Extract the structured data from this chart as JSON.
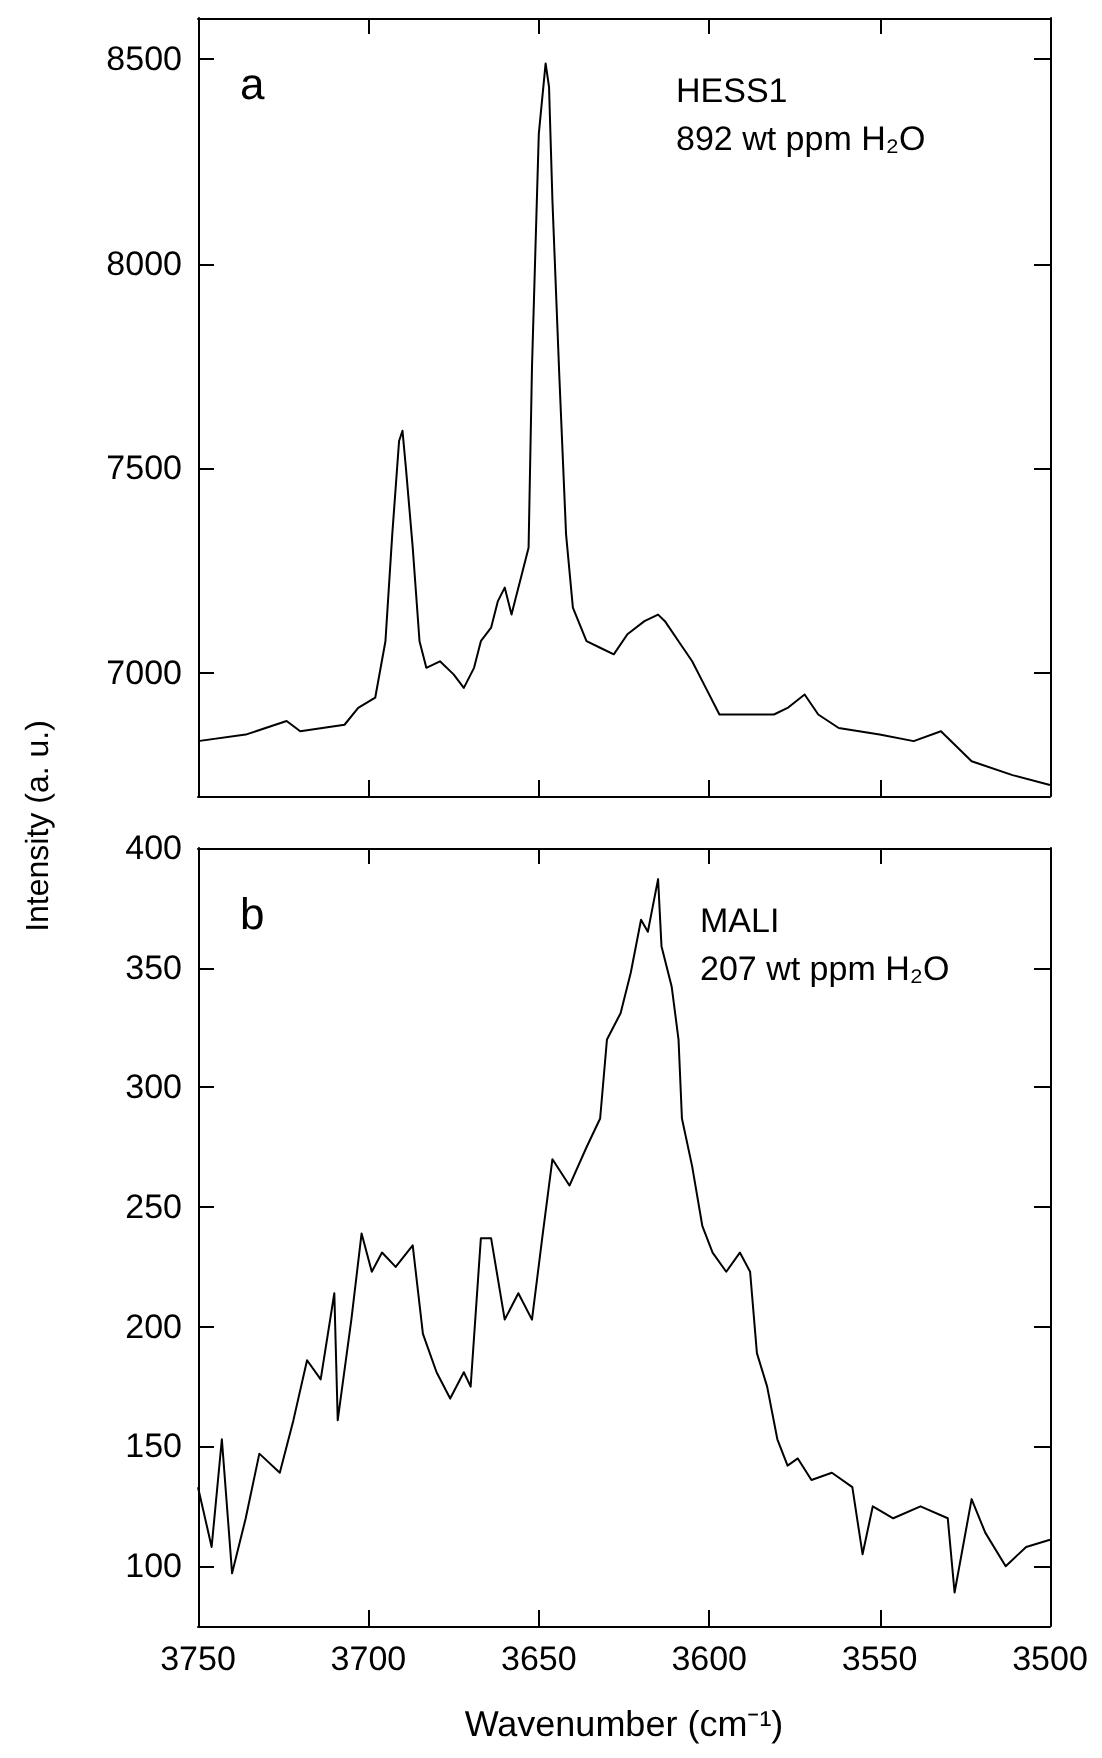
{
  "chart_data": [
    {
      "type": "line",
      "ylabel": "Intensity (a. u.)",
      "annotations": [
        "a",
        "HESS1",
        "892 wt ppm H₂O"
      ],
      "xlim": [
        3750,
        3500
      ],
      "xticks": [
        3750,
        3700,
        3650,
        3600,
        3550,
        3500
      ],
      "ylim": [
        6700,
        8600
      ],
      "yticks": [
        7000,
        7500,
        8000,
        8500
      ],
      "tick_labels": "y",
      "marker": "none",
      "line_style": "solid",
      "series": [
        {
          "color": "#000000",
          "x": [
            3750,
            3736,
            3724,
            3720,
            3707,
            3703,
            3698,
            3695,
            3693,
            3691,
            3690,
            3689,
            3687,
            3685,
            3683,
            3679,
            3675,
            3672,
            3669,
            3667,
            3664,
            3662,
            3660,
            3658,
            3657,
            3655,
            3653,
            3652,
            3650,
            3648,
            3647,
            3646,
            3644,
            3642,
            3640,
            3636,
            3632,
            3628,
            3624,
            3619,
            3615,
            3613,
            3609,
            3605,
            3601,
            3597,
            3589,
            3581,
            3577,
            3572,
            3568,
            3562,
            3550,
            3540,
            3532,
            3523,
            3511,
            3500
          ],
          "values": [
            6834,
            6850,
            6883,
            6858,
            6874,
            6915,
            6940,
            7078,
            7339,
            7567,
            7592,
            7502,
            7307,
            7078,
            7013,
            7029,
            6997,
            6964,
            7013,
            7078,
            7111,
            7176,
            7209,
            7143,
            7176,
            7241,
            7306,
            7747,
            8317,
            8489,
            8432,
            8154,
            7730,
            7339,
            7160,
            7078,
            7062,
            7046,
            7095,
            7127,
            7143,
            7127,
            7078,
            7029,
            6964,
            6899,
            6899,
            6899,
            6915,
            6948,
            6899,
            6866,
            6850,
            6834,
            6858,
            6785,
            6751,
            6727
          ]
        }
      ]
    },
    {
      "type": "line",
      "xlabel": "Wavenumber (cm⁻¹)",
      "annotations": [
        "b",
        "MALI",
        "207 wt ppm H₂O"
      ],
      "xlim": [
        3750,
        3500
      ],
      "xticks": [
        3750,
        3700,
        3650,
        3600,
        3550,
        3500
      ],
      "ylim": [
        75,
        400
      ],
      "yticks": [
        100,
        150,
        200,
        250,
        300,
        350,
        400
      ],
      "marker": "none",
      "line_style": "solid",
      "series": [
        {
          "color": "#000000",
          "x": [
            3750,
            3746,
            3743,
            3740,
            3736,
            3732,
            3726,
            3722,
            3718,
            3714,
            3710,
            3709,
            3705,
            3702,
            3699,
            3696,
            3692,
            3687,
            3684,
            3680,
            3676,
            3672,
            3670,
            3667,
            3664,
            3660,
            3656,
            3652,
            3649,
            3646,
            3641,
            3636,
            3632,
            3630,
            3626,
            3623,
            3620,
            3618,
            3615,
            3614,
            3611,
            3609,
            3608,
            3605,
            3602,
            3599,
            3595,
            3591,
            3588,
            3586,
            3583,
            3580,
            3577,
            3574,
            3570,
            3564,
            3558,
            3555,
            3552,
            3546,
            3538,
            3530,
            3528,
            3523,
            3519,
            3513,
            3507,
            3500
          ],
          "values": [
            133,
            108,
            153,
            97,
            120,
            147,
            139,
            161,
            186,
            178,
            214,
            161,
            203,
            239,
            223,
            231,
            225,
            234,
            197,
            181,
            170,
            181,
            175,
            237,
            237,
            203,
            214,
            203,
            237,
            270,
            259,
            275,
            287,
            320,
            331,
            348,
            370,
            365,
            387,
            359,
            342,
            320,
            287,
            267,
            242,
            231,
            223,
            231,
            223,
            189,
            175,
            153,
            142,
            145,
            136,
            139,
            133,
            105,
            125,
            120,
            125,
            120,
            89,
            128,
            114,
            100,
            108,
            111
          ]
        }
      ]
    }
  ]
}
